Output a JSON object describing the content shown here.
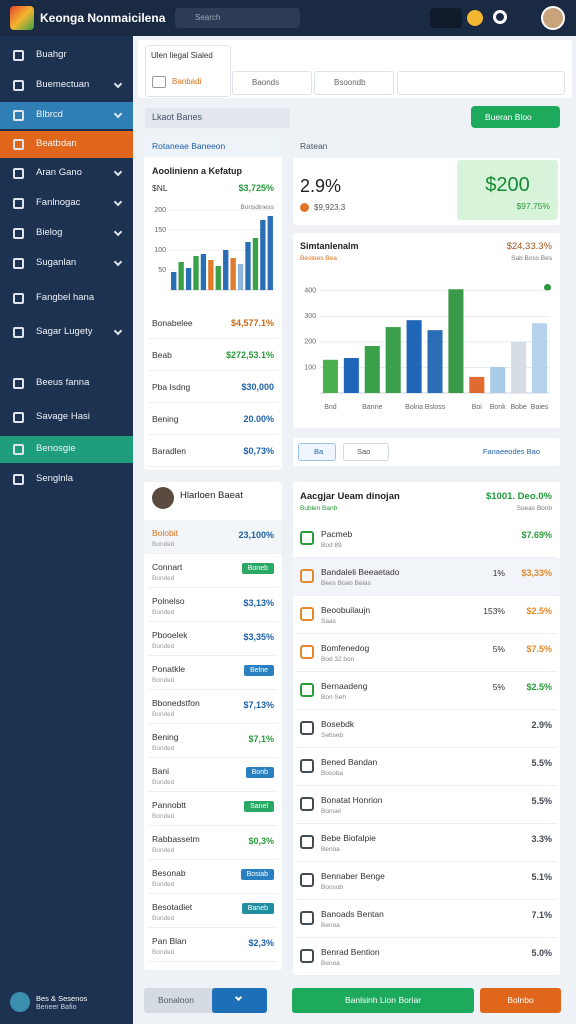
{
  "app": {
    "title": "Keonga Nonmaicilena",
    "search": "Search"
  },
  "sidebar": {
    "items": [
      {
        "label": "Buahgr"
      },
      {
        "label": "Buemectuan"
      },
      {
        "label": "Blbrcd",
        "active_color": "#2f7fb5"
      },
      {
        "label": "Beatbdan",
        "active_color": "#e0661b"
      },
      {
        "label": "Aran Gano"
      },
      {
        "label": "Fanlnogac"
      },
      {
        "label": "Bielog"
      },
      {
        "label": "Suganlan"
      },
      {
        "label": "Fangbel hana"
      },
      {
        "label": "Sagar Lugety"
      },
      {
        "label": "Beeus fanna"
      },
      {
        "label": "Savage Hasi"
      },
      {
        "label": "Benosgie",
        "active_color": "#1f9e7c"
      },
      {
        "label": "Senglnla"
      }
    ],
    "user": {
      "name": "Bes & Sesenos",
      "role": "Beneer Bafio"
    }
  },
  "filters": {
    "tab_title": "Ulen liegal Sialed",
    "tab_value": "Banbadi",
    "inputs": [
      "Baonds",
      "Bsoondb"
    ],
    "section": "Lkaot Banes",
    "button": "Bueran Bloo"
  },
  "overview": {
    "tab": "Rotaneae Baneeon",
    "title": "Aoolinienn a Kefatup",
    "label": "$NL",
    "value": "$3,725%",
    "legend": "Bonsdiness",
    "chart": {
      "type": "bar",
      "categories": [
        null,
        null,
        null,
        null,
        null,
        null,
        null,
        null,
        null,
        null,
        null,
        null,
        null,
        null
      ],
      "values": [
        45,
        70,
        55,
        85,
        90,
        75,
        60,
        100,
        80,
        65,
        120,
        130,
        175,
        185
      ],
      "colors": [
        "#2a6fb5",
        "#3aa04a",
        "#2a6fb5",
        "#3aa04a",
        "#2a6fb5",
        "#e07b2c",
        "#3aa04a",
        "#2a6fb5",
        "#e07b2c",
        "#8fb7dc",
        "#2a6fb5",
        "#3aa04a",
        "#2a6fb5",
        "#2a6fb5"
      ],
      "ylim": [
        0,
        200
      ],
      "yticks": [
        50,
        100,
        150,
        200
      ]
    },
    "rows": [
      {
        "label": "Bonabelee",
        "value": "$4,577.1%",
        "color": "#c76a16"
      },
      {
        "label": "Beab",
        "value": "$272,53.1%",
        "color": "#2a9a3c"
      },
      {
        "label": "Pba Isdng",
        "value": "$30,000",
        "color": "#1f62a8"
      },
      {
        "label": "Bening",
        "value": "20.00%",
        "color": "#1f62a8"
      },
      {
        "label": "Baradlen",
        "value": "$0,73%",
        "color": "#1f62a8"
      }
    ]
  },
  "stats": {
    "label": "Ratean",
    "value": "2.9%",
    "sub": "$9,923.3",
    "highlight": "$200",
    "highlight_sub": "$97.75%"
  },
  "sales": {
    "title": "Simtanlenalm",
    "value": "$24,33.3%",
    "sub_left": "Bestees Bea",
    "sub_right": "Sab Boss Bes",
    "chart": {
      "type": "bar",
      "categories": [
        "Bnd",
        null,
        "Banne",
        null,
        "Bolna",
        "Bsloss",
        null,
        "Boi",
        "Bonk",
        "Bobe",
        "Baies"
      ],
      "values": [
        130,
        137,
        184,
        258,
        285,
        246,
        406,
        63,
        102,
        200,
        273
      ],
      "colors": [
        "#4caf50",
        "#1f66b8",
        "#3aa04a",
        "#3aa04a",
        "#1f66b8",
        "#2a6fb5",
        "#3a9a48",
        "#e06a30",
        "#a8cbe8",
        "#d7dde5",
        "#b5d3ec"
      ],
      "ylim": [
        0,
        450
      ],
      "yticks": [
        100,
        200,
        300,
        400
      ]
    }
  },
  "toolbar": {
    "chip1": "Ba",
    "chip2": "Sao",
    "link": "Fanaeeodes Bao"
  },
  "people": {
    "name": "Hlarloen Baeat",
    "rows": [
      {
        "label": "Bolobit",
        "sub": "Bonded",
        "value": "23,100%",
        "color": "#1f62a8"
      },
      {
        "label": "Connart",
        "sub": "Bonded",
        "badge": "Boneb",
        "color": "#2aa866"
      },
      {
        "label": "Polnelso",
        "sub": "Bonded",
        "value": "$3,13%",
        "color": "#1f62a8"
      },
      {
        "label": "Pbooelek",
        "sub": "Bonded",
        "value": "$3,35%",
        "color": "#1f62a8"
      },
      {
        "label": "Ponatkle",
        "sub": "Bonded",
        "badge": "Belne",
        "color": "#2a7fc0"
      },
      {
        "label": "Bbonedstfon",
        "sub": "Bonded",
        "value": "$7,13%",
        "color": "#1f62a8"
      },
      {
        "label": "Bening",
        "sub": "Bonded",
        "value": "$7,1%",
        "color": "#2a9a3c"
      },
      {
        "label": "Bani",
        "sub": "Bonded",
        "badge": "Bonb",
        "color": "#2a7fc0"
      },
      {
        "label": "Pannobtt",
        "sub": "Bonded",
        "badge": "Sanel",
        "color": "#2aa866"
      },
      {
        "label": "Rabbassetm",
        "sub": "Bonded",
        "value": "$0,3%",
        "color": "#2a9a3c"
      },
      {
        "label": "Besonab",
        "sub": "Bonded",
        "badge": "Bosiab",
        "color": "#2a7fc0"
      },
      {
        "label": "Besotadiet",
        "sub": "Bonded",
        "badge": "Baneb",
        "color": "#1f8fa0"
      },
      {
        "label": "Pan Blan",
        "sub": "Bonded",
        "value": "$2,3%",
        "color": "#1f62a8"
      }
    ]
  },
  "activity": {
    "title": "Aacgjar Ueam dinojan",
    "total": "$1001. Deo.0%",
    "subtitle": "Bublen Banb",
    "total_sub": "Soeas Bonb",
    "rows": [
      {
        "title": "Pacmeb",
        "sub": "Bod 89",
        "value": "$7.69%",
        "color": "#2a9a3c"
      },
      {
        "title": "Bandaleli Beeaetado",
        "sub": "Bees Boeb Belas",
        "pct": "1%",
        "value": "$3,33%",
        "color": "#e08a2c"
      },
      {
        "title": "Beoobuilaujn",
        "sub": "Saas",
        "pct": "153%",
        "value": "$2.5%",
        "color": "#e08a2c"
      },
      {
        "title": "Bomfenedog",
        "sub": "Bod 32 bon",
        "pct": "5%",
        "value": "$7.5%",
        "color": "#e08a2c"
      },
      {
        "title": "Bernaadeng",
        "sub": "Bon Seh",
        "pct": "5%",
        "value": "$2.5%",
        "color": "#2a9a3c"
      },
      {
        "title": "Bosebdk",
        "sub": "Sebseb",
        "value": "2.9%",
        "color": "#444a52"
      },
      {
        "title": "Bened Bandan",
        "sub": "Bosoba",
        "value": "5.5%",
        "color": "#444a52"
      },
      {
        "title": "Bonatat Honrion",
        "sub": "Bonsel",
        "value": "5.5%",
        "color": "#444a52"
      },
      {
        "title": "Bebe Biofalpie",
        "sub": "Benoa",
        "value": "3.3%",
        "color": "#444a52"
      },
      {
        "title": "Bennaber Benge",
        "sub": "Bonsob",
        "value": "5.1%",
        "color": "#444a52"
      },
      {
        "title": "Banoads Bentan",
        "sub": "Benoa",
        "value": "7.1%",
        "color": "#444a52"
      },
      {
        "title": "Benrad Bention",
        "sub": "Benoa",
        "value": "5.0%",
        "color": "#444a52"
      }
    ]
  },
  "footer": {
    "secondary": "Bonaloon",
    "primary": "Banlsinh Lion Boriar",
    "danger": "Bolnbo"
  }
}
